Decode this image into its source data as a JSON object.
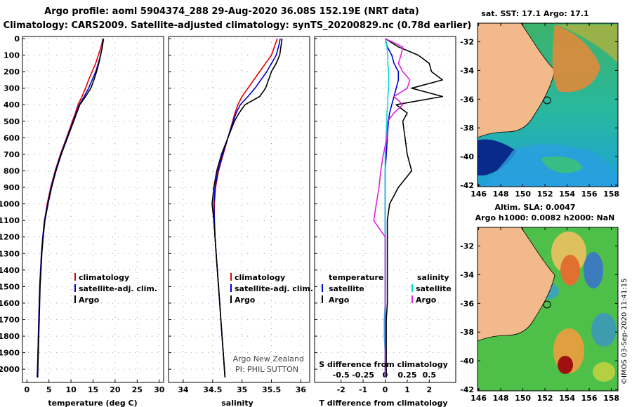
{
  "header": {
    "title_line1": "Argo profile: aoml 5904374_288 29-Aug-2020 36.08S 152.19E (NRT data)",
    "title_line2": "Climatology: CARS2009. Satellite-adjusted climatology: synTS_20200829.nc (0.78d earlier)"
  },
  "depth_ticks": [
    "0",
    "100",
    "200",
    "300",
    "400",
    "500",
    "600",
    "700",
    "800",
    "900",
    "1000",
    "1100",
    "1200",
    "1300",
    "1400",
    "1500",
    "1600",
    "1700",
    "1800",
    "1900",
    "2000"
  ],
  "colors": {
    "climatology": "#e00000",
    "satellite": "#0000d0",
    "argo": "#000000",
    "sat_salinity": "#00d8e0",
    "argo_salinity": "#e020e0",
    "land": "#f2b98a"
  },
  "chart_data": [
    {
      "type": "line",
      "name": "temperature",
      "xlabel": "temperature (deg C)",
      "ylabel": "depth",
      "xlim": [
        -1,
        31
      ],
      "ylim": [
        2080,
        0
      ],
      "x_ticks": [
        "0",
        "5",
        "10",
        "15",
        "20",
        "25",
        "30"
      ],
      "x_tick_values": [
        0,
        5,
        10,
        15,
        20,
        25,
        30
      ],
      "depth": [
        0,
        50,
        100,
        150,
        200,
        250,
        300,
        350,
        400,
        450,
        500,
        600,
        700,
        800,
        900,
        1000,
        1100,
        1200,
        1300,
        1400,
        1500,
        1600,
        1700,
        1800,
        1900,
        2000,
        2050
      ],
      "series": [
        {
          "name": "climatology",
          "values": [
            17.3,
            16.8,
            16.2,
            15.6,
            14.8,
            14.0,
            13.3,
            12.5,
            11.6,
            11.0,
            10.3,
            9.0,
            7.6,
            6.4,
            5.4,
            4.6,
            4.0,
            3.6,
            3.3,
            3.1,
            2.9,
            2.8,
            2.7,
            2.6,
            2.5,
            2.4,
            2.35
          ]
        },
        {
          "name": "satellite-adj. clim.",
          "values": [
            17.4,
            17.1,
            16.7,
            16.2,
            15.6,
            14.8,
            14.0,
            13.0,
            11.9,
            11.2,
            10.5,
            9.1,
            7.7,
            6.5,
            5.5,
            4.7,
            4.0,
            3.6,
            3.3,
            3.1,
            2.9,
            2.8,
            2.7,
            2.6,
            2.5,
            2.4,
            2.35
          ]
        },
        {
          "name": "Argo",
          "values": [
            17.3,
            17.1,
            16.7,
            16.3,
            15.8,
            15.2,
            14.5,
            13.3,
            12.0,
            11.3,
            10.6,
            9.2,
            7.8,
            6.6,
            5.6,
            4.8,
            4.1,
            3.7,
            3.4,
            3.2,
            3.0,
            2.9,
            2.8,
            2.7,
            2.6,
            2.5,
            2.45
          ]
        }
      ],
      "legend": [
        "climatology",
        "satellite-adj. clim.",
        "Argo"
      ]
    },
    {
      "type": "line",
      "name": "salinity",
      "xlabel": "salinity",
      "ylabel": "depth",
      "xlim": [
        33.75,
        36.15
      ],
      "ylim": [
        2080,
        0
      ],
      "x_ticks": [
        "34",
        "34.5",
        "35",
        "35.5",
        "36"
      ],
      "x_tick_values": [
        34,
        34.5,
        35,
        35.5,
        36
      ],
      "depth": [
        0,
        50,
        100,
        150,
        200,
        250,
        300,
        350,
        400,
        450,
        500,
        600,
        700,
        800,
        900,
        1000,
        1100,
        1200,
        1300,
        1400,
        1500,
        1600,
        1700,
        1800,
        1900,
        2000,
        2050
      ],
      "series": [
        {
          "name": "climatology",
          "values": [
            35.6,
            35.55,
            35.5,
            35.4,
            35.3,
            35.2,
            35.1,
            35.0,
            34.93,
            34.88,
            34.84,
            34.76,
            34.68,
            34.6,
            34.55,
            34.53,
            34.53,
            34.54,
            34.56,
            34.58,
            34.6,
            34.62,
            34.64,
            34.66,
            34.68,
            34.7,
            34.71
          ]
        },
        {
          "name": "satellite-adj. clim.",
          "values": [
            35.65,
            35.62,
            35.58,
            35.5,
            35.42,
            35.32,
            35.22,
            35.1,
            34.97,
            34.9,
            34.85,
            34.76,
            34.67,
            34.59,
            34.54,
            34.52,
            34.53,
            34.54,
            34.56,
            34.58,
            34.6,
            34.62,
            34.64,
            34.66,
            34.68,
            34.7,
            34.71
          ]
        },
        {
          "name": "Argo",
          "values": [
            35.68,
            35.66,
            35.64,
            35.58,
            35.5,
            35.45,
            35.4,
            35.3,
            35.05,
            34.95,
            34.87,
            34.76,
            34.65,
            34.57,
            34.52,
            34.49,
            34.52,
            34.54,
            34.56,
            34.58,
            34.6,
            34.62,
            34.64,
            34.66,
            34.68,
            34.7,
            34.71
          ]
        }
      ],
      "legend": [
        "climatology",
        "satellite-adj. clim.",
        "Argo"
      ],
      "annotation_line1": "Argo New Zealand",
      "annotation_line2": "PI: PHIL SUTTON"
    },
    {
      "type": "line",
      "name": "difference",
      "xlabel": "T difference from climatology",
      "xlabel_top": "S difference from climatology",
      "xlim": [
        -3.2,
        3.2
      ],
      "ylim": [
        2080,
        0
      ],
      "x_ticks": [
        "-2",
        "-1",
        "0",
        "1",
        "2"
      ],
      "x_tick_values": [
        -2,
        -1,
        0,
        1,
        2
      ],
      "s_ticks": [
        "-0.5",
        "-0.25",
        "0",
        "0.25",
        "0.5"
      ],
      "s_tick_values": [
        -0.5,
        -0.25,
        0,
        0.25,
        0.5
      ],
      "depth": [
        0,
        50,
        100,
        150,
        200,
        250,
        300,
        350,
        400,
        450,
        500,
        600,
        700,
        800,
        900,
        1000,
        1100,
        1200,
        1300,
        1400,
        1500,
        1600,
        1700,
        1800,
        1900,
        2000,
        2050
      ],
      "series": [
        {
          "name": "temperature satellite",
          "values": [
            0,
            0.1,
            0.3,
            0.4,
            0.6,
            0.6,
            0.5,
            0.4,
            0.3,
            0.2,
            0.15,
            0.1,
            0.05,
            0,
            0,
            0,
            0,
            0,
            0,
            0,
            0,
            0,
            0,
            0,
            0,
            0,
            0
          ]
        },
        {
          "name": "temperature Argo",
          "values": [
            0,
            0.6,
            1.5,
            2.0,
            2.1,
            2.6,
            1.2,
            2.6,
            0.5,
            1.0,
            0.8,
            0.9,
            1.0,
            1.2,
            0.6,
            0.2,
            0.1,
            0.1,
            0.1,
            0.1,
            0.1,
            0.1,
            0.05,
            0.05,
            0.05,
            0.05,
            0.05
          ]
        },
        {
          "name": "salinity satellite",
          "values": [
            0,
            0.02,
            0.03,
            0.03,
            0.04,
            0.04,
            0.04,
            0.03,
            0.03,
            0.02,
            0.02,
            0.01,
            0,
            0,
            0,
            0,
            0,
            0,
            0,
            0,
            0,
            0,
            -0.01,
            -0.01,
            0,
            0,
            0
          ]
        },
        {
          "name": "salinity Argo",
          "values": [
            0,
            0.2,
            0.18,
            0.15,
            0.2,
            0.28,
            0.25,
            0.1,
            0.2,
            0.1,
            0.03,
            0.02,
            -0.02,
            -0.05,
            -0.07,
            -0.1,
            -0.13,
            0,
            0,
            0,
            0,
            0,
            0,
            0,
            0,
            0,
            0
          ]
        }
      ],
      "legend_left_title": "temperature",
      "legend_right_title": "salinity",
      "legend_left": [
        "satellite",
        "Argo"
      ],
      "legend_right": [
        "satellite",
        "Argo"
      ]
    }
  ],
  "maps": {
    "sst_title": "sat. SST: 17.1 Argo: 17.1",
    "sla_title_line1": "Altim. SLA: 0.0047",
    "sla_title_line2": "Argo h1000: 0.0082 h2000: NaN",
    "lat_ticks": [
      "-32",
      "-34",
      "-36",
      "-38",
      "-40",
      "-42"
    ],
    "lat_values": [
      -32,
      -34,
      -36,
      -38,
      -40,
      -42
    ],
    "lon_ticks": [
      "146",
      "148",
      "150",
      "152",
      "154",
      "156",
      "158"
    ],
    "lon_values": [
      146,
      148,
      150,
      152,
      154,
      156,
      158
    ],
    "lon_range": [
      145.9,
      158.6
    ],
    "lat_range": [
      -42.1,
      -30.7
    ],
    "float_lon": 152.19,
    "float_lat": -36.08
  },
  "footer": {
    "copyright": "©IMOS 03-Sep-2020 11:41:15"
  }
}
